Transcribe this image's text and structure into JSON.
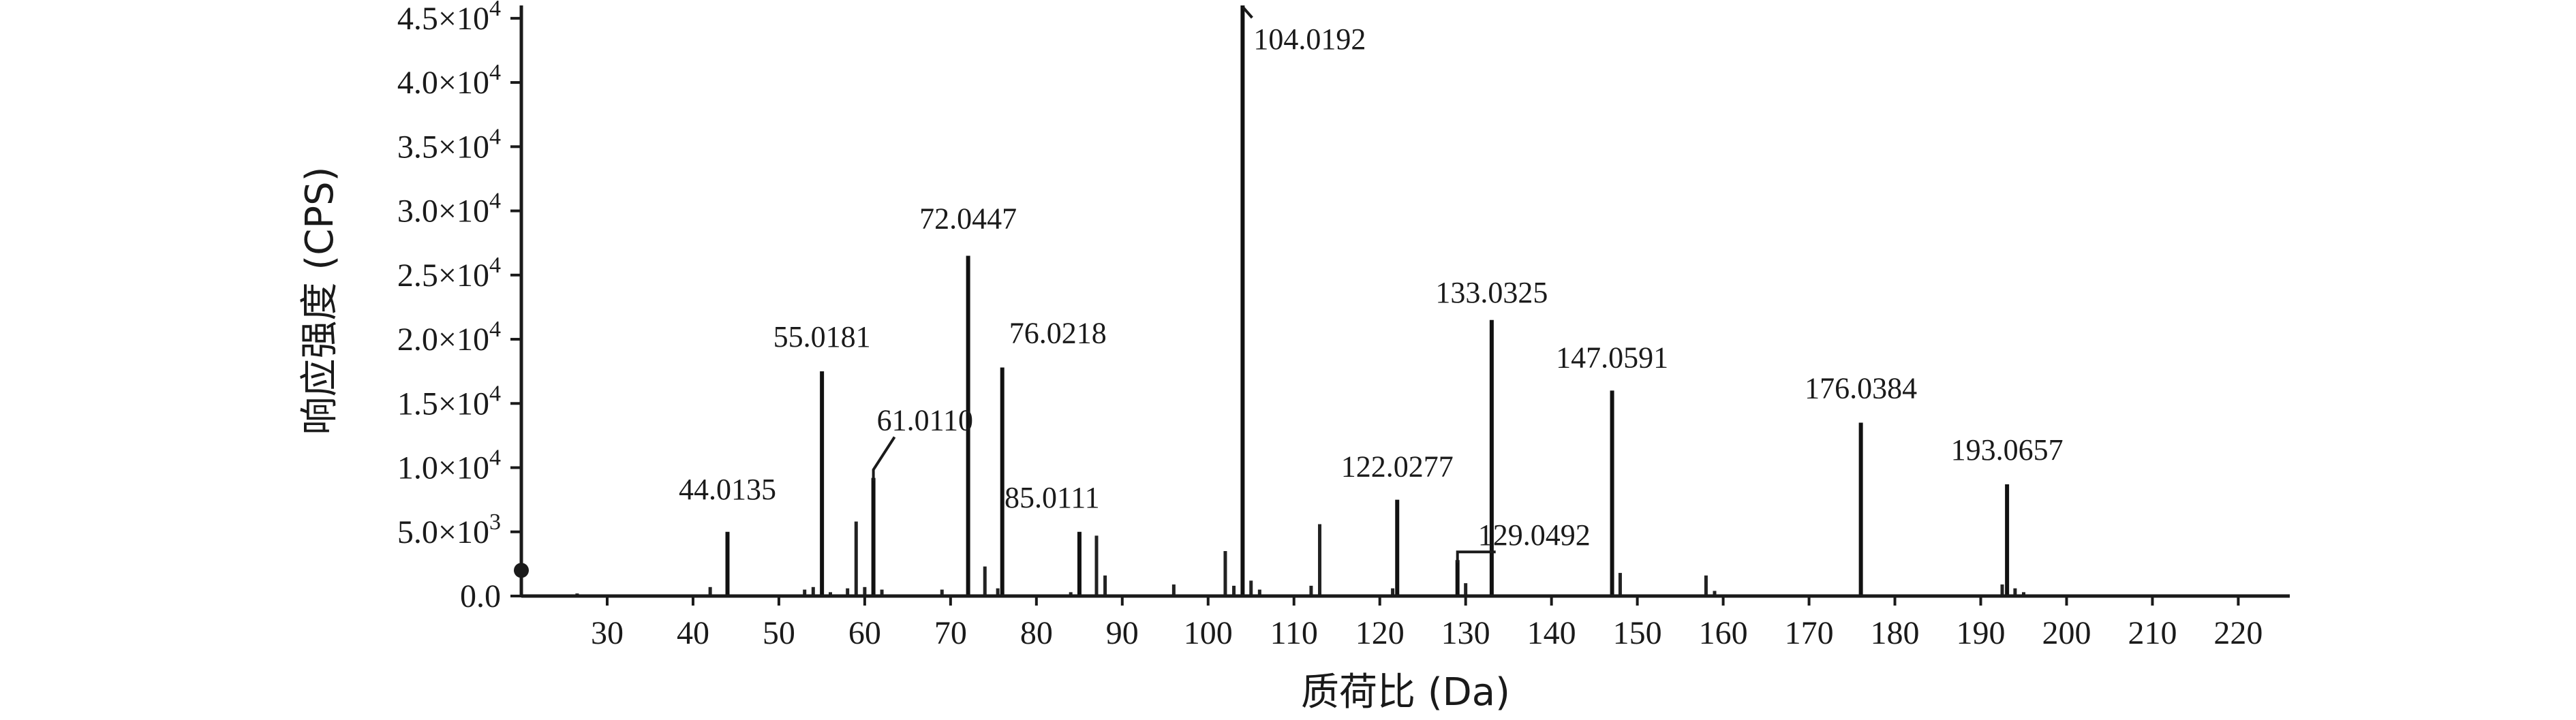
{
  "chart_data": {
    "type": "bar",
    "xlabel": "质荷比 (Da)",
    "ylabel": "响应强度 (CPS)",
    "xlim": [
      20,
      226
    ],
    "ylim": [
      0,
      46000
    ],
    "xticks": [
      30,
      40,
      50,
      60,
      70,
      80,
      90,
      100,
      110,
      120,
      130,
      140,
      150,
      160,
      170,
      180,
      190,
      200,
      210,
      220
    ],
    "yticks": [
      {
        "value": 0,
        "mant": "0.0",
        "exp": ""
      },
      {
        "value": 5000,
        "mant": "5.0×10",
        "exp": "3"
      },
      {
        "value": 10000,
        "mant": "1.0×10",
        "exp": "4"
      },
      {
        "value": 15000,
        "mant": "1.5×10",
        "exp": "4"
      },
      {
        "value": 20000,
        "mant": "2.0×10",
        "exp": "4"
      },
      {
        "value": 25000,
        "mant": "2.5×10",
        "exp": "4"
      },
      {
        "value": 30000,
        "mant": "3.0×10",
        "exp": "4"
      },
      {
        "value": 35000,
        "mant": "3.5×10",
        "exp": "4"
      },
      {
        "value": 40000,
        "mant": "4.0×10",
        "exp": "4"
      },
      {
        "value": 45000,
        "mant": "4.5×10",
        "exp": "4"
      }
    ],
    "labeled_peaks": [
      {
        "mz": 44.0135,
        "intensity": 5000,
        "label": "44.0135"
      },
      {
        "mz": 55.0181,
        "intensity": 17500,
        "label": "55.0181"
      },
      {
        "mz": 61.011,
        "intensity": 9200,
        "label": "61.0110"
      },
      {
        "mz": 72.0447,
        "intensity": 26500,
        "label": "72.0447"
      },
      {
        "mz": 76.0218,
        "intensity": 17800,
        "label": "76.0218"
      },
      {
        "mz": 85.0111,
        "intensity": 5000,
        "label": "85.0111"
      },
      {
        "mz": 104.0192,
        "intensity": 46000,
        "label": "104.0192"
      },
      {
        "mz": 122.0277,
        "intensity": 7500,
        "label": "122.0277"
      },
      {
        "mz": 129.0492,
        "intensity": 2800,
        "label": "129.0492"
      },
      {
        "mz": 133.0325,
        "intensity": 21500,
        "label": "133.0325"
      },
      {
        "mz": 147.0591,
        "intensity": 16000,
        "label": "147.0591"
      },
      {
        "mz": 176.0384,
        "intensity": 13500,
        "label": "176.0384"
      },
      {
        "mz": 193.0657,
        "intensity": 8700,
        "label": "193.0657"
      }
    ],
    "minor_peaks": [
      {
        "mz": 26.5,
        "intensity": 200
      },
      {
        "mz": 42.0,
        "intensity": 700
      },
      {
        "mz": 53.0,
        "intensity": 500
      },
      {
        "mz": 54.0,
        "intensity": 700
      },
      {
        "mz": 56.0,
        "intensity": 300
      },
      {
        "mz": 58.0,
        "intensity": 600
      },
      {
        "mz": 59.0,
        "intensity": 5800
      },
      {
        "mz": 60.0,
        "intensity": 700
      },
      {
        "mz": 62.0,
        "intensity": 500
      },
      {
        "mz": 69.0,
        "intensity": 500
      },
      {
        "mz": 74.0,
        "intensity": 2300
      },
      {
        "mz": 75.5,
        "intensity": 600
      },
      {
        "mz": 84.0,
        "intensity": 300
      },
      {
        "mz": 87.0,
        "intensity": 4700
      },
      {
        "mz": 88.0,
        "intensity": 1600
      },
      {
        "mz": 96.0,
        "intensity": 900
      },
      {
        "mz": 102.0,
        "intensity": 3500
      },
      {
        "mz": 103.0,
        "intensity": 800
      },
      {
        "mz": 105.0,
        "intensity": 1200
      },
      {
        "mz": 106.0,
        "intensity": 500
      },
      {
        "mz": 112.0,
        "intensity": 800
      },
      {
        "mz": 113.0,
        "intensity": 5600
      },
      {
        "mz": 121.5,
        "intensity": 600
      },
      {
        "mz": 130.0,
        "intensity": 1000
      },
      {
        "mz": 148.0,
        "intensity": 1800
      },
      {
        "mz": 158.0,
        "intensity": 1600
      },
      {
        "mz": 159.0,
        "intensity": 400
      },
      {
        "mz": 192.5,
        "intensity": 900
      },
      {
        "mz": 194.0,
        "intensity": 600
      },
      {
        "mz": 195.0,
        "intensity": 300
      }
    ]
  }
}
